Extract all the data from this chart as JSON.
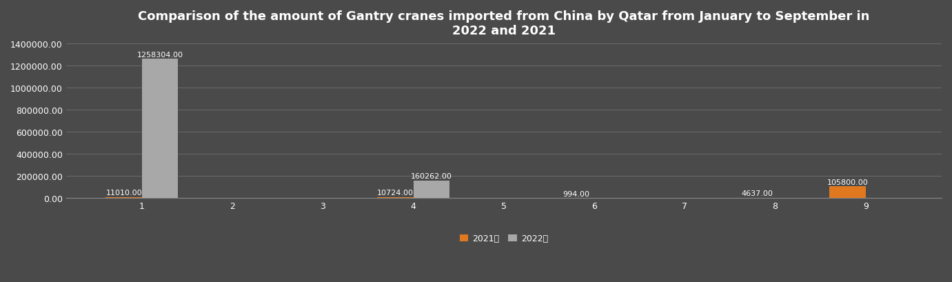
{
  "title": "Comparison of the amount of Gantry cranes imported from China by Qatar from January to September in\n2022 and 2021",
  "months": [
    1,
    2,
    3,
    4,
    5,
    6,
    7,
    8,
    9
  ],
  "values_2021": [
    11010.0,
    0,
    0,
    10724.0,
    0,
    994.0,
    0,
    4637.0,
    105800.0
  ],
  "values_2022": [
    1258304.0,
    0,
    0,
    160262.0,
    0,
    0,
    0,
    0,
    0
  ],
  "color_2021": "#E07820",
  "color_2022": "#A8A8A8",
  "background_color": "#4a4a4a",
  "text_color": "#ffffff",
  "label_2021": "2021年",
  "label_2022": "2022年",
  "ylim": [
    0,
    1400000
  ],
  "yticks": [
    0,
    200000,
    400000,
    600000,
    800000,
    1000000,
    1200000,
    1400000
  ],
  "bar_width": 0.4,
  "title_fontsize": 13,
  "tick_fontsize": 9,
  "annotation_fontsize": 8
}
